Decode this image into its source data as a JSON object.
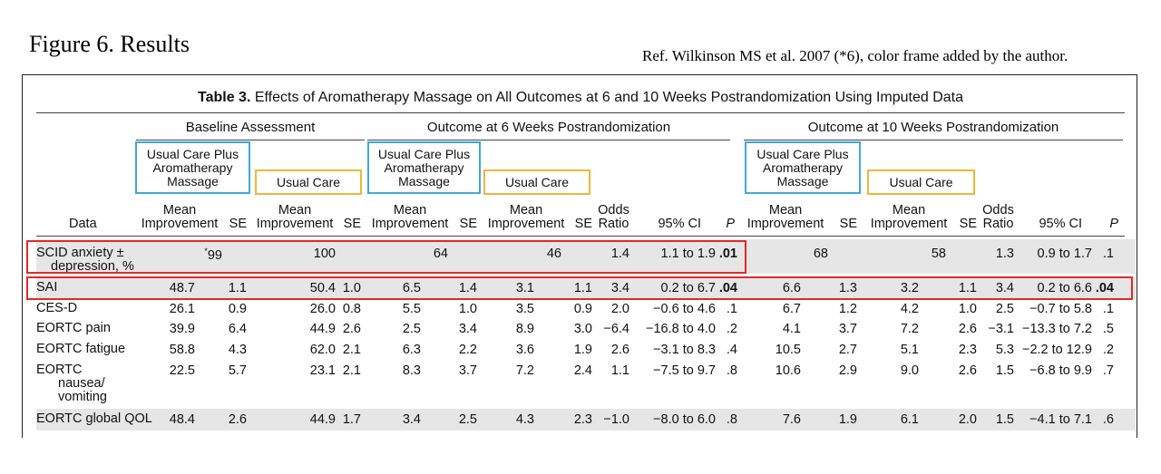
{
  "figure": {
    "title": "Figure 6. Results",
    "reference": "Ref. Wilkinson MS et al. 2007 (*6), color frame added by the author."
  },
  "table": {
    "label": "Table 3.",
    "caption": " Effects of Aromatherapy Massage on All Outcomes at 6 and 10 Weeks Postrandomization Using Imputed Data",
    "groups": [
      "Baseline Assessment",
      "Outcome at 6 Weeks Postrandomization",
      "Outcome at 10 Weeks Postrandomization"
    ],
    "arm_aroma": [
      "Usual Care Plus",
      "Aromatherapy",
      "Massage"
    ],
    "arm_usual": "Usual Care",
    "col": {
      "data": "Data",
      "mean": "Mean",
      "improvement": "Improvement",
      "se": "SE",
      "odds": "Odds",
      "ratio": "Ratio",
      "ci": "95% CI",
      "p": "P"
    },
    "rows": [
      {
        "label": [
          "SCID anxiety ±",
          "depression, %"
        ],
        "v": [
          "*99",
          "",
          "100",
          "",
          "64",
          "",
          "46",
          "",
          "1.4",
          "1.1 to 1.9",
          ".01",
          "68",
          "",
          "58",
          "",
          "1.3",
          "0.9 to 1.7",
          ".1"
        ]
      },
      {
        "label": [
          "SAI"
        ],
        "v": [
          "48.7",
          "1.1",
          "50.4",
          "1.0",
          "6.5",
          "1.4",
          "3.1",
          "1.1",
          "3.4",
          "0.2 to 6.7",
          ".04",
          "6.6",
          "1.3",
          "3.2",
          "1.1",
          "3.4",
          "0.2 to 6.6",
          ".04"
        ]
      },
      {
        "label": [
          "CES-D"
        ],
        "v": [
          "26.1",
          "0.9",
          "26.0",
          "0.8",
          "5.5",
          "1.0",
          "3.5",
          "0.9",
          "2.0",
          "−0.6 to 4.6",
          ".1",
          "6.7",
          "1.2",
          "4.2",
          "1.0",
          "2.5",
          "−0.7 to 5.8",
          ".1"
        ]
      },
      {
        "label": [
          "EORTC pain"
        ],
        "v": [
          "39.9",
          "6.4",
          "44.9",
          "2.6",
          "2.5",
          "3.4",
          "8.9",
          "3.0",
          "−6.4",
          "−16.8 to 4.0",
          ".2",
          "4.1",
          "3.7",
          "7.2",
          "2.6",
          "−3.1",
          "−13.3 to 7.2",
          ".5"
        ]
      },
      {
        "label": [
          "EORTC fatigue"
        ],
        "v": [
          "58.8",
          "4.3",
          "62.0",
          "2.1",
          "6.3",
          "2.2",
          "3.6",
          "1.9",
          "2.6",
          "−3.1 to 8.3",
          ".4",
          "10.5",
          "2.7",
          "5.1",
          "2.3",
          "5.3",
          "−2.2 to 12.9",
          ".2"
        ]
      },
      {
        "label": [
          "EORTC",
          "nausea/",
          "vomiting"
        ],
        "v": [
          "22.5",
          "5.7",
          "23.1",
          "2.1",
          "8.3",
          "3.7",
          "7.2",
          "2.4",
          "1.1",
          "−7.5 to 9.7",
          ".8",
          "10.6",
          "2.9",
          "9.0",
          "2.6",
          "1.5",
          "−6.8 to 9.9",
          ".7"
        ]
      },
      {
        "label": [
          "EORTC global QOL"
        ],
        "v": [
          "48.4",
          "2.6",
          "44.9",
          "1.7",
          "3.4",
          "2.5",
          "4.3",
          "2.3",
          "−1.0",
          "−8.0 to 6.0",
          ".8",
          "7.6",
          "1.9",
          "6.1",
          "2.0",
          "1.5",
          "−4.1 to 7.1",
          ".6"
        ]
      }
    ]
  },
  "colors": {
    "highlight_red": "#e02a2a",
    "frame_blue": "#3fa7dd",
    "frame_yellow": "#f0b63a",
    "row_shade": "#e6e6e6"
  }
}
